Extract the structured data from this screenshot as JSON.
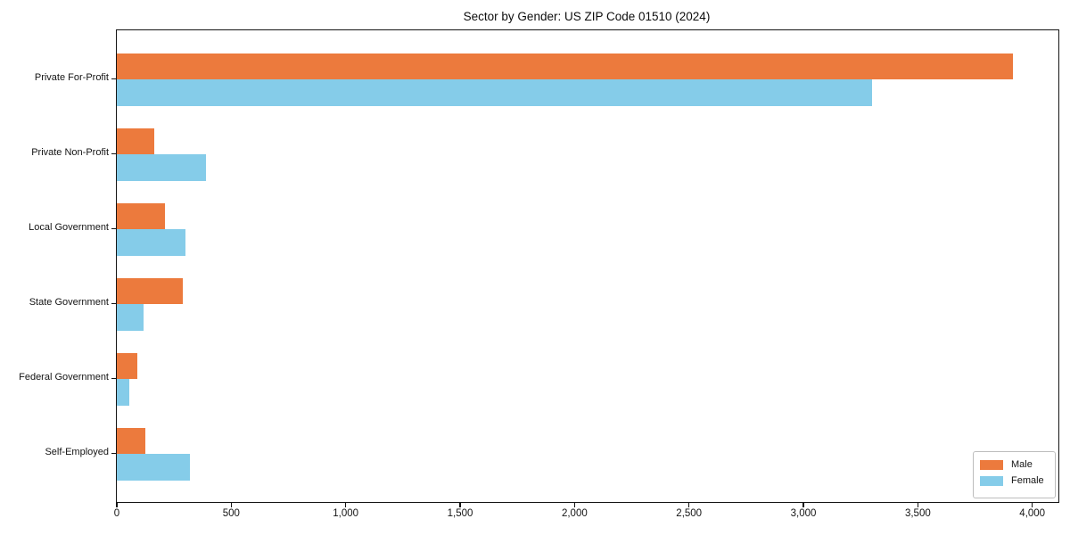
{
  "header": {
    "title": "Sector by Gender: US ZIP Code 01510 (2024)"
  },
  "chart_data": {
    "type": "bar",
    "orientation": "horizontal",
    "title": "Sector by Gender: US ZIP Code 01510 (2024)",
    "categories": [
      "Private For-Profit",
      "Private Non-Profit",
      "Local Government",
      "State Government",
      "Federal Government",
      "Self-Employed"
    ],
    "series": [
      {
        "name": "Male",
        "color": "#ec7a3d",
        "values": [
          3915,
          165,
          210,
          290,
          90,
          125
        ]
      },
      {
        "name": "Female",
        "color": "#85cce9",
        "values": [
          3300,
          390,
          300,
          115,
          55,
          320
        ]
      }
    ],
    "xlabel": "",
    "ylabel": "",
    "xlim": [
      0,
      4000
    ],
    "xticks": [
      0,
      500,
      1000,
      1500,
      2000,
      2500,
      3000,
      3500,
      4000
    ],
    "xtick_labels": [
      "0",
      "500",
      "1,000",
      "1,500",
      "2,000",
      "2,500",
      "3,000",
      "3,500",
      "4,000"
    ],
    "grid": false,
    "legend_position": "lower right",
    "axis_color": "#141414",
    "background_color": "#ffffff"
  }
}
